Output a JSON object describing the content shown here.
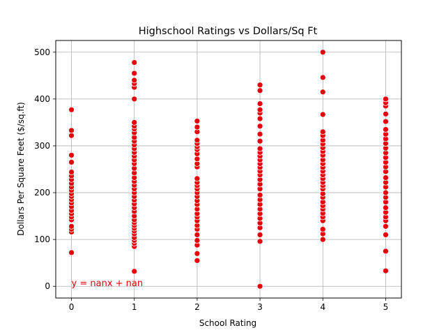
{
  "chart_data": {
    "type": "scatter",
    "title": "Highschool Ratings vs Dollars/Sq Ft",
    "xlabel": "School Rating",
    "ylabel": "Dollars Per Square Feet ($/sq.ft)",
    "xlim": [
      -0.25,
      5.25
    ],
    "ylim": [
      -25,
      525
    ],
    "xticks": [
      0,
      1,
      2,
      3,
      4,
      5
    ],
    "yticks": [
      0,
      100,
      200,
      300,
      400,
      500
    ],
    "grid": true,
    "marker_color": "#e8000b",
    "marker_edge_color": "#ffffff",
    "annotation": {
      "text": "y = nanx + nan",
      "x": 0,
      "y": 0,
      "color": "#e8000b"
    },
    "points": [
      {
        "x": 0,
        "y": 72
      },
      {
        "x": 0,
        "y": 116
      },
      {
        "x": 0,
        "y": 122
      },
      {
        "x": 0,
        "y": 128
      },
      {
        "x": 0,
        "y": 142
      },
      {
        "x": 0,
        "y": 148
      },
      {
        "x": 0,
        "y": 155
      },
      {
        "x": 0,
        "y": 162
      },
      {
        "x": 0,
        "y": 170
      },
      {
        "x": 0,
        "y": 178
      },
      {
        "x": 0,
        "y": 185
      },
      {
        "x": 0,
        "y": 192
      },
      {
        "x": 0,
        "y": 198
      },
      {
        "x": 0,
        "y": 205
      },
      {
        "x": 0,
        "y": 212
      },
      {
        "x": 0,
        "y": 220
      },
      {
        "x": 0,
        "y": 228
      },
      {
        "x": 0,
        "y": 236
      },
      {
        "x": 0,
        "y": 244
      },
      {
        "x": 0,
        "y": 265
      },
      {
        "x": 0,
        "y": 280
      },
      {
        "x": 0,
        "y": 322
      },
      {
        "x": 0,
        "y": 333
      },
      {
        "x": 0,
        "y": 377
      },
      {
        "x": 1,
        "y": 32
      },
      {
        "x": 1,
        "y": 85
      },
      {
        "x": 1,
        "y": 92
      },
      {
        "x": 1,
        "y": 98
      },
      {
        "x": 1,
        "y": 104
      },
      {
        "x": 1,
        "y": 112
      },
      {
        "x": 1,
        "y": 118
      },
      {
        "x": 1,
        "y": 124
      },
      {
        "x": 1,
        "y": 130
      },
      {
        "x": 1,
        "y": 136
      },
      {
        "x": 1,
        "y": 142
      },
      {
        "x": 1,
        "y": 150
      },
      {
        "x": 1,
        "y": 160
      },
      {
        "x": 1,
        "y": 168
      },
      {
        "x": 1,
        "y": 176
      },
      {
        "x": 1,
        "y": 184
      },
      {
        "x": 1,
        "y": 192
      },
      {
        "x": 1,
        "y": 200
      },
      {
        "x": 1,
        "y": 208
      },
      {
        "x": 1,
        "y": 216
      },
      {
        "x": 1,
        "y": 224
      },
      {
        "x": 1,
        "y": 232
      },
      {
        "x": 1,
        "y": 242
      },
      {
        "x": 1,
        "y": 252
      },
      {
        "x": 1,
        "y": 262
      },
      {
        "x": 1,
        "y": 270
      },
      {
        "x": 1,
        "y": 278
      },
      {
        "x": 1,
        "y": 286
      },
      {
        "x": 1,
        "y": 294
      },
      {
        "x": 1,
        "y": 302
      },
      {
        "x": 1,
        "y": 310
      },
      {
        "x": 1,
        "y": 318
      },
      {
        "x": 1,
        "y": 328
      },
      {
        "x": 1,
        "y": 336
      },
      {
        "x": 1,
        "y": 342
      },
      {
        "x": 1,
        "y": 350
      },
      {
        "x": 1,
        "y": 400
      },
      {
        "x": 1,
        "y": 425
      },
      {
        "x": 1,
        "y": 433
      },
      {
        "x": 1,
        "y": 440
      },
      {
        "x": 1,
        "y": 455
      },
      {
        "x": 1,
        "y": 478
      },
      {
        "x": 2,
        "y": 55
      },
      {
        "x": 2,
        "y": 70
      },
      {
        "x": 2,
        "y": 88
      },
      {
        "x": 2,
        "y": 98
      },
      {
        "x": 2,
        "y": 110
      },
      {
        "x": 2,
        "y": 122
      },
      {
        "x": 2,
        "y": 130
      },
      {
        "x": 2,
        "y": 140
      },
      {
        "x": 2,
        "y": 148
      },
      {
        "x": 2,
        "y": 155
      },
      {
        "x": 2,
        "y": 165
      },
      {
        "x": 2,
        "y": 175
      },
      {
        "x": 2,
        "y": 183
      },
      {
        "x": 2,
        "y": 192
      },
      {
        "x": 2,
        "y": 200
      },
      {
        "x": 2,
        "y": 208
      },
      {
        "x": 2,
        "y": 215
      },
      {
        "x": 2,
        "y": 222
      },
      {
        "x": 2,
        "y": 230
      },
      {
        "x": 2,
        "y": 255
      },
      {
        "x": 2,
        "y": 262
      },
      {
        "x": 2,
        "y": 272
      },
      {
        "x": 2,
        "y": 283
      },
      {
        "x": 2,
        "y": 292
      },
      {
        "x": 2,
        "y": 298
      },
      {
        "x": 2,
        "y": 305
      },
      {
        "x": 2,
        "y": 312
      },
      {
        "x": 2,
        "y": 330
      },
      {
        "x": 2,
        "y": 340
      },
      {
        "x": 2,
        "y": 353
      },
      {
        "x": 3,
        "y": 0
      },
      {
        "x": 3,
        "y": 96
      },
      {
        "x": 3,
        "y": 110
      },
      {
        "x": 3,
        "y": 125
      },
      {
        "x": 3,
        "y": 135
      },
      {
        "x": 3,
        "y": 145
      },
      {
        "x": 3,
        "y": 155
      },
      {
        "x": 3,
        "y": 165
      },
      {
        "x": 3,
        "y": 175
      },
      {
        "x": 3,
        "y": 185
      },
      {
        "x": 3,
        "y": 195
      },
      {
        "x": 3,
        "y": 208
      },
      {
        "x": 3,
        "y": 218
      },
      {
        "x": 3,
        "y": 228
      },
      {
        "x": 3,
        "y": 238
      },
      {
        "x": 3,
        "y": 246
      },
      {
        "x": 3,
        "y": 254
      },
      {
        "x": 3,
        "y": 262
      },
      {
        "x": 3,
        "y": 270
      },
      {
        "x": 3,
        "y": 278
      },
      {
        "x": 3,
        "y": 286
      },
      {
        "x": 3,
        "y": 294
      },
      {
        "x": 3,
        "y": 310
      },
      {
        "x": 3,
        "y": 325
      },
      {
        "x": 3,
        "y": 342
      },
      {
        "x": 3,
        "y": 358
      },
      {
        "x": 3,
        "y": 370
      },
      {
        "x": 3,
        "y": 377
      },
      {
        "x": 3,
        "y": 390
      },
      {
        "x": 3,
        "y": 418
      },
      {
        "x": 3,
        "y": 430
      },
      {
        "x": 4,
        "y": 100
      },
      {
        "x": 4,
        "y": 112
      },
      {
        "x": 4,
        "y": 122
      },
      {
        "x": 4,
        "y": 140
      },
      {
        "x": 4,
        "y": 148
      },
      {
        "x": 4,
        "y": 156
      },
      {
        "x": 4,
        "y": 165
      },
      {
        "x": 4,
        "y": 172
      },
      {
        "x": 4,
        "y": 180
      },
      {
        "x": 4,
        "y": 190
      },
      {
        "x": 4,
        "y": 198
      },
      {
        "x": 4,
        "y": 208
      },
      {
        "x": 4,
        "y": 215
      },
      {
        "x": 4,
        "y": 222
      },
      {
        "x": 4,
        "y": 230
      },
      {
        "x": 4,
        "y": 238
      },
      {
        "x": 4,
        "y": 246
      },
      {
        "x": 4,
        "y": 254
      },
      {
        "x": 4,
        "y": 262
      },
      {
        "x": 4,
        "y": 270
      },
      {
        "x": 4,
        "y": 280
      },
      {
        "x": 4,
        "y": 288
      },
      {
        "x": 4,
        "y": 296
      },
      {
        "x": 4,
        "y": 304
      },
      {
        "x": 4,
        "y": 312
      },
      {
        "x": 4,
        "y": 322
      },
      {
        "x": 4,
        "y": 330
      },
      {
        "x": 4,
        "y": 367
      },
      {
        "x": 4,
        "y": 415
      },
      {
        "x": 4,
        "y": 446
      },
      {
        "x": 4,
        "y": 500
      },
      {
        "x": 5,
        "y": 33
      },
      {
        "x": 5,
        "y": 75
      },
      {
        "x": 5,
        "y": 110
      },
      {
        "x": 5,
        "y": 128
      },
      {
        "x": 5,
        "y": 140
      },
      {
        "x": 5,
        "y": 148
      },
      {
        "x": 5,
        "y": 158
      },
      {
        "x": 5,
        "y": 168
      },
      {
        "x": 5,
        "y": 180
      },
      {
        "x": 5,
        "y": 190
      },
      {
        "x": 5,
        "y": 200
      },
      {
        "x": 5,
        "y": 212
      },
      {
        "x": 5,
        "y": 222
      },
      {
        "x": 5,
        "y": 232
      },
      {
        "x": 5,
        "y": 245
      },
      {
        "x": 5,
        "y": 255
      },
      {
        "x": 5,
        "y": 265
      },
      {
        "x": 5,
        "y": 275
      },
      {
        "x": 5,
        "y": 285
      },
      {
        "x": 5,
        "y": 295
      },
      {
        "x": 5,
        "y": 305
      },
      {
        "x": 5,
        "y": 315
      },
      {
        "x": 5,
        "y": 325
      },
      {
        "x": 5,
        "y": 335
      },
      {
        "x": 5,
        "y": 352
      },
      {
        "x": 5,
        "y": 368
      },
      {
        "x": 5,
        "y": 385
      },
      {
        "x": 5,
        "y": 392
      },
      {
        "x": 5,
        "y": 400
      }
    ]
  }
}
